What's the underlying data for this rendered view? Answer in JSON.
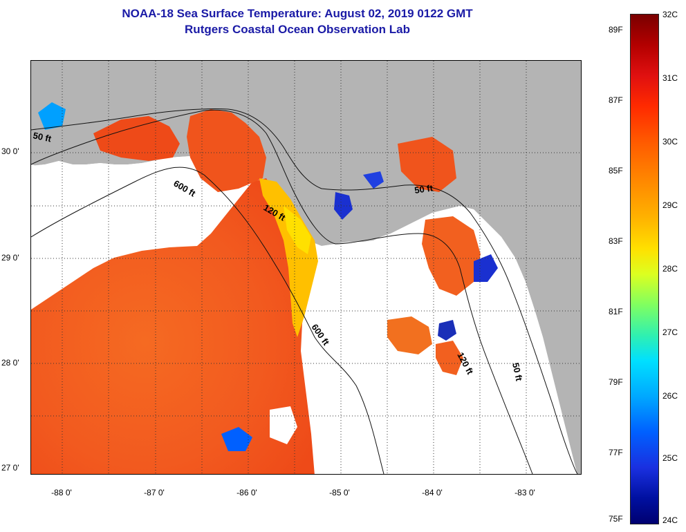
{
  "title": {
    "line1": "NOAA-18 Sea Surface Temperature:  August 02, 2019 0122 GMT",
    "line2": "Rutgers Coastal Ocean Observation Lab"
  },
  "axes": {
    "lat_labels": [
      "30 0'",
      "29 0'",
      "28 0'",
      "27 0'"
    ],
    "lon_labels": [
      "-88 0'",
      "-87 0'",
      "-86 0'",
      "-85 0'",
      "-84 0'",
      "-83 0'"
    ]
  },
  "contours": {
    "label_50_west": "50 ft",
    "label_600_north": "600 ft",
    "label_120_north": "120 ft",
    "label_50_east": "50 ft",
    "label_600_south": "600 ft",
    "label_120_south": "120 ft",
    "label_50_south": "50 ft"
  },
  "colorbar": {
    "fahrenheit": [
      "89F",
      "87F",
      "85F",
      "83F",
      "81F",
      "79F",
      "77F",
      "75F"
    ],
    "celsius": [
      "32C",
      "31C",
      "30C",
      "29C",
      "28C",
      "27C",
      "26C",
      "25C",
      "24C"
    ]
  },
  "colors": {
    "land": "#b4b4b4",
    "title": "#1a1aa6",
    "warm": "#f25a1f",
    "cool": "#ffd000"
  }
}
